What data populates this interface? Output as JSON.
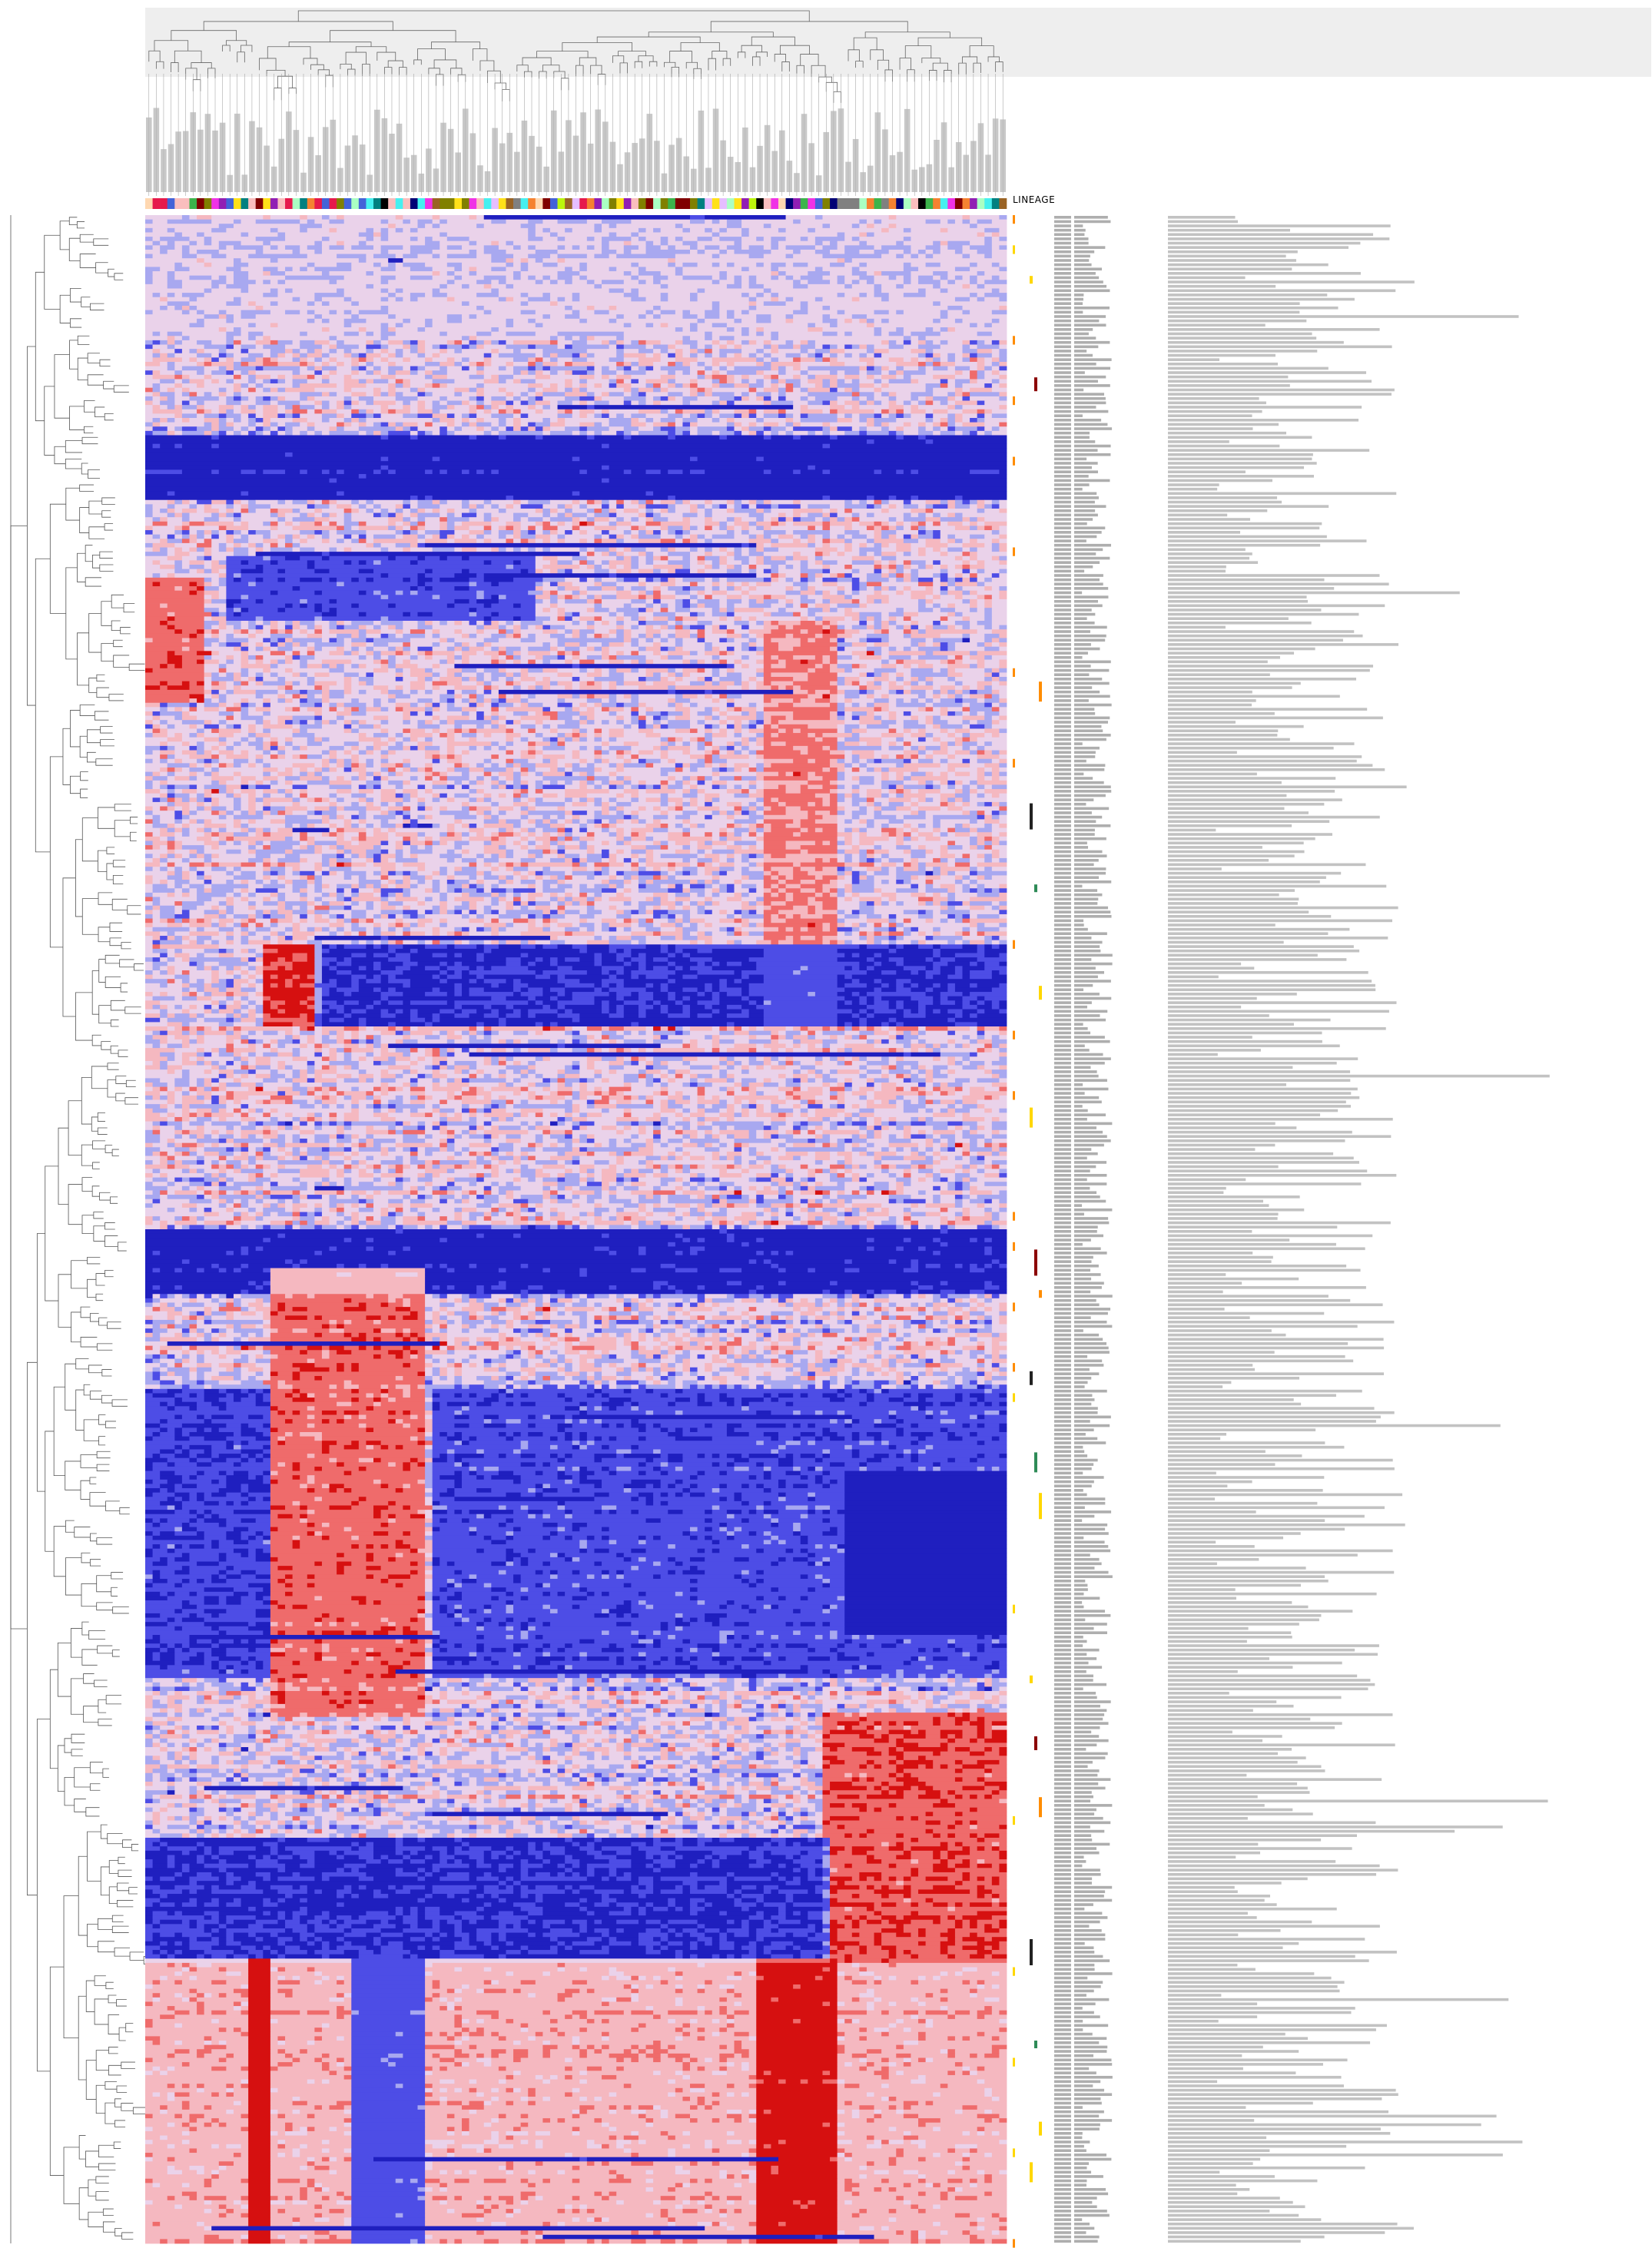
{
  "chart_data": {
    "type": "heatmap",
    "title": "",
    "subtitle": "",
    "xlabel": "",
    "ylabel": "",
    "annotation_track_label": "LINEAGE",
    "n_columns": 117,
    "n_rows": 470,
    "row_dendrogram": true,
    "column_dendrogram": true,
    "column_labels_readable": false,
    "row_labels_readable": false,
    "colorscale": [
      "#1f1fbf",
      "#4d4de6",
      "#a8a8f0",
      "#ead2ea",
      "#f5b8c0",
      "#ef6b6b",
      "#d61010"
    ],
    "value_range": [
      -3,
      3
    ],
    "lineage_colors": [
      "#e6194b",
      "#f58231",
      "#ffe119",
      "#3cb44b",
      "#46f0f0",
      "#4363d8",
      "#911eb4",
      "#f032e6",
      "#bcf60c",
      "#008080",
      "#9a6324",
      "#800000",
      "#aaffc3",
      "#808000",
      "#000075",
      "#808080",
      "#ffd8b1",
      "#e6beff",
      "#fabebe",
      "#000000"
    ],
    "blocks": [
      {
        "rows": [
          0.0,
          0.06
        ],
        "cols": [
          0.0,
          1.0
        ],
        "value": -0.2
      },
      {
        "rows": [
          0.11,
          0.14
        ],
        "cols": [
          0.0,
          1.0
        ],
        "value": -2.6
      },
      {
        "rows": [
          0.17,
          0.2
        ],
        "cols": [
          0.1,
          0.45
        ],
        "value": -1.8
      },
      {
        "rows": [
          0.18,
          0.24
        ],
        "cols": [
          0.0,
          0.06
        ],
        "value": 1.8
      },
      {
        "rows": [
          0.2,
          0.4
        ],
        "cols": [
          0.72,
          0.8
        ],
        "value": 1.4
      },
      {
        "rows": [
          0.36,
          0.4
        ],
        "cols": [
          0.14,
          0.2
        ],
        "value": 2.4
      },
      {
        "rows": [
          0.36,
          0.4
        ],
        "cols": [
          0.2,
          1.0
        ],
        "value": -2.2
      },
      {
        "rows": [
          0.5,
          0.53
        ],
        "cols": [
          0.0,
          1.0
        ],
        "value": -2.6
      },
      {
        "rows": [
          0.52,
          0.74
        ],
        "cols": [
          0.15,
          0.32
        ],
        "value": 1.8
      },
      {
        "rows": [
          0.58,
          0.72
        ],
        "cols": [
          0.0,
          0.14
        ],
        "value": -2.0
      },
      {
        "rows": [
          0.58,
          0.72
        ],
        "cols": [
          0.34,
          1.0
        ],
        "value": -1.8
      },
      {
        "rows": [
          0.62,
          0.7
        ],
        "cols": [
          0.82,
          1.0
        ],
        "value": -2.4
      },
      {
        "rows": [
          0.74,
          0.86
        ],
        "cols": [
          0.79,
          1.0
        ],
        "value": 2.0
      },
      {
        "rows": [
          0.8,
          0.86
        ],
        "cols": [
          0.0,
          0.79
        ],
        "value": -2.2
      },
      {
        "rows": [
          0.86,
          1.0
        ],
        "cols": [
          0.0,
          1.0
        ],
        "value": 0.9
      },
      {
        "rows": [
          0.86,
          1.0
        ],
        "cols": [
          0.24,
          0.32
        ],
        "value": -2.0
      },
      {
        "rows": [
          0.86,
          1.0
        ],
        "cols": [
          0.71,
          0.8
        ],
        "value": 2.0
      },
      {
        "rows": [
          0.86,
          1.0
        ],
        "cols": [
          0.12,
          0.14
        ],
        "value": 2.4
      }
    ],
    "side_marks_rows": [
      0.03,
      0.08,
      0.23,
      0.29,
      0.33,
      0.38,
      0.44,
      0.51,
      0.53,
      0.57,
      0.61,
      0.63,
      0.72,
      0.75,
      0.78,
      0.85,
      0.9,
      0.94,
      0.96
    ]
  }
}
